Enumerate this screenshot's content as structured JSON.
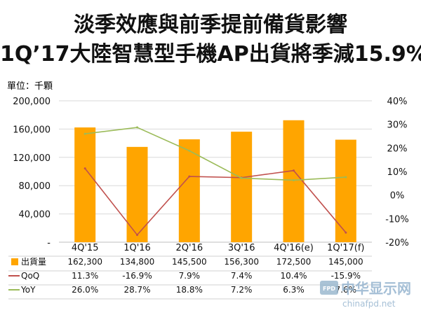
{
  "title_line1": "淡季效應與前季提前備貨影響",
  "title_line2": "1Q’17大陸智慧型手機AP出貨將季減15.9%",
  "unit_label": "單位：千顆",
  "colors": {
    "bar": "#ffa500",
    "qoq": "#c0504d",
    "yoy": "#9bbb59",
    "grid": "#d9d9d9"
  },
  "watermark": {
    "text_cn": "中华显示网",
    "text_en": "chinafpd.net",
    "badge": "FPD"
  },
  "chart_data": {
    "type": "bar",
    "categories": [
      "4Q'15",
      "1Q'16",
      "2Q'16",
      "3Q'16",
      "4Q'16(e)",
      "1Q'17(f)"
    ],
    "left_axis": {
      "min": 0,
      "max": 200000,
      "ticks": [
        "-",
        "40,000",
        "80,000",
        "120,000",
        "160,000",
        "200,000"
      ]
    },
    "right_axis": {
      "min": -20,
      "max": 40,
      "ticks": [
        "-20%",
        "-10%",
        "0%",
        "10%",
        "20%",
        "30%",
        "40%"
      ]
    },
    "series": [
      {
        "name": "出貨量",
        "type": "bar",
        "axis": "left",
        "values": [
          162300,
          134800,
          145500,
          156300,
          172500,
          145000
        ],
        "labels": [
          "162,300",
          "134,800",
          "145,500",
          "156,300",
          "172,500",
          "145,000"
        ]
      },
      {
        "name": "QoQ",
        "type": "line",
        "axis": "right",
        "values": [
          11.3,
          -16.9,
          7.9,
          7.4,
          10.4,
          -15.9
        ],
        "labels": [
          "11.3%",
          "-16.9%",
          "7.9%",
          "7.4%",
          "10.4%",
          "-15.9%"
        ]
      },
      {
        "name": "YoY",
        "type": "line",
        "axis": "right",
        "values": [
          26.0,
          28.7,
          18.8,
          7.2,
          6.3,
          7.6
        ],
        "labels": [
          "26.0%",
          "28.7%",
          "18.8%",
          "7.2%",
          "6.3%",
          "7.6%"
        ]
      }
    ],
    "legend": "table-below"
  }
}
